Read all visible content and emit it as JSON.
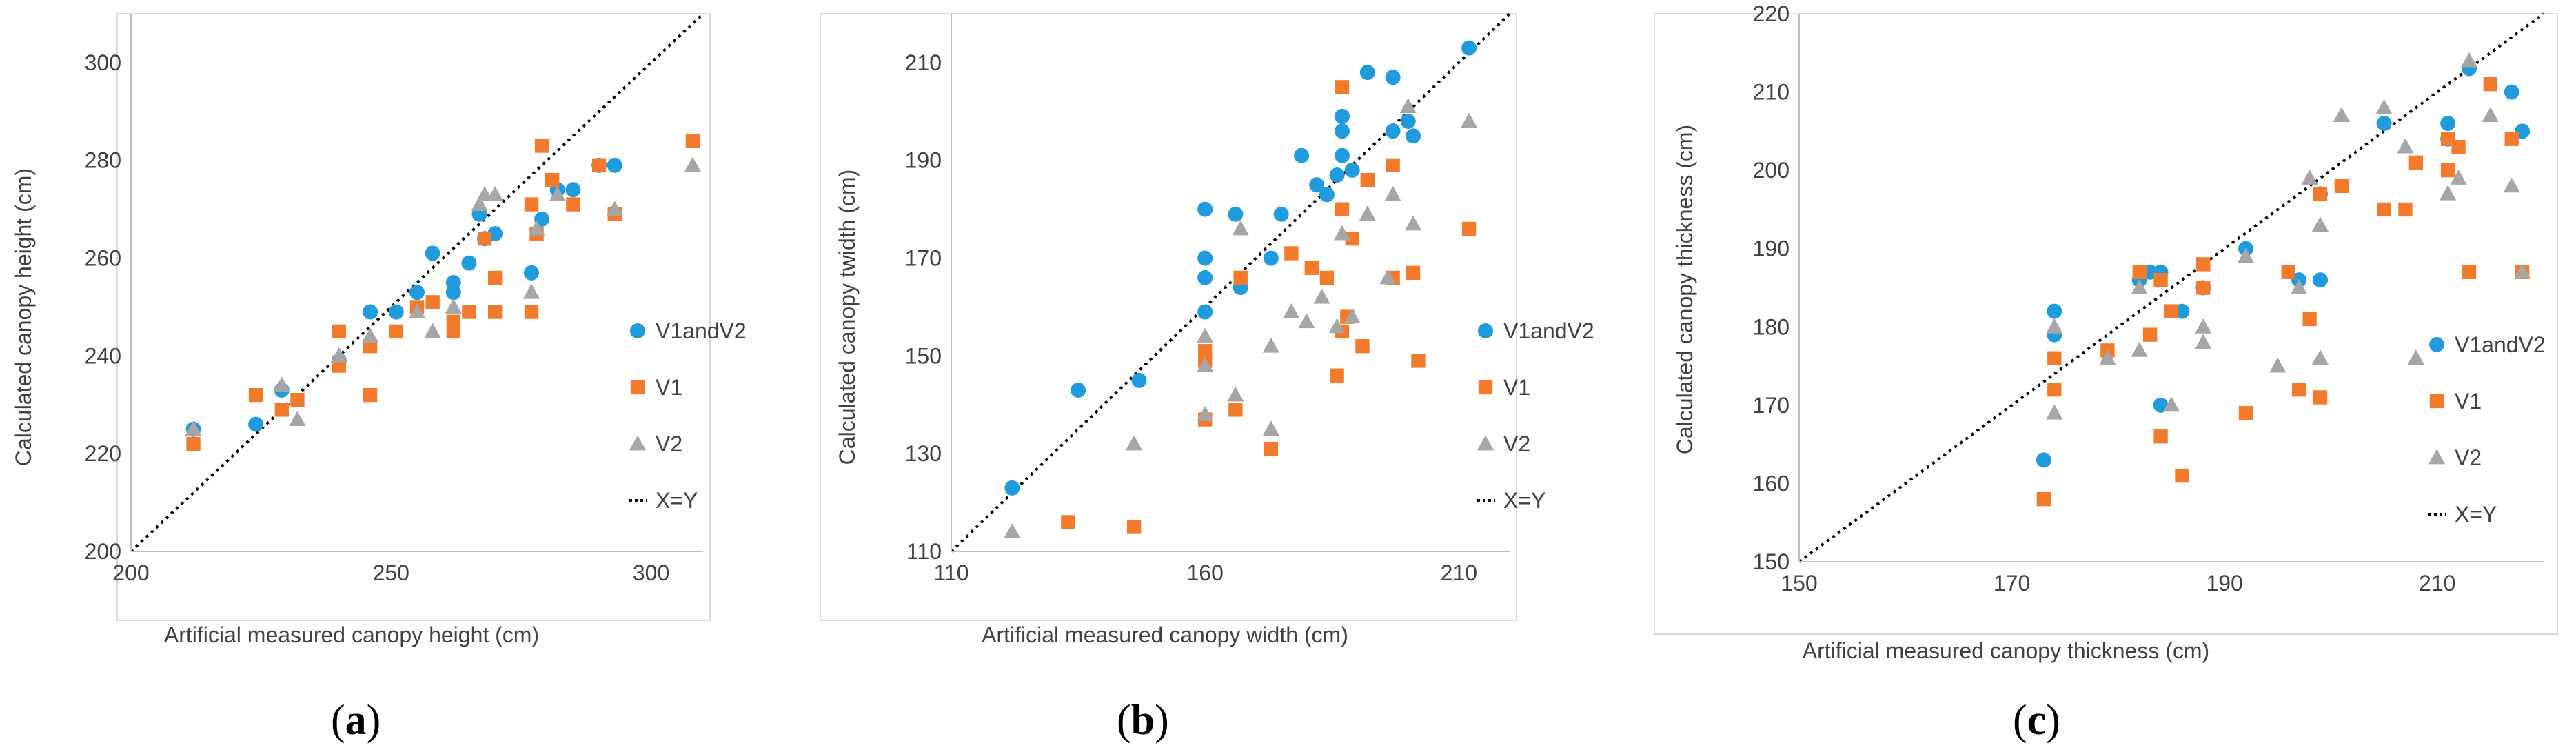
{
  "colors": {
    "V1andV2": "#1F9BDE",
    "V1": "#F27A2A",
    "V2": "#A6A6A6",
    "xy": "#000000",
    "axis": "#BFBFBF",
    "text": "#404040"
  },
  "chart_data": [
    {
      "type": "scatter",
      "panel": "a",
      "xlabel": "Artificial measured canopy height (cm)",
      "ylabel": "Calculated canopy height (cm)",
      "xlim": [
        200,
        310
      ],
      "ylim": [
        200,
        310
      ],
      "xticks": [
        "200",
        "250",
        "300"
      ],
      "xtick_values": [
        200,
        250,
        300
      ],
      "yticks": [
        "200",
        "220",
        "240",
        "260",
        "280",
        "300"
      ],
      "ytick_values": [
        200,
        220,
        240,
        260,
        280,
        300
      ],
      "legend": [
        "V1andV2",
        "V1",
        "V2",
        "X=Y"
      ],
      "series": [
        {
          "name": "V1andV2",
          "points": [
            [
              212,
              225
            ],
            [
              224,
              226
            ],
            [
              229,
              233
            ],
            [
              240,
              239
            ],
            [
              246,
              249
            ],
            [
              251,
              249
            ],
            [
              255,
              253
            ],
            [
              258,
              261
            ],
            [
              262,
              255
            ],
            [
              262,
              253
            ],
            [
              265,
              259
            ],
            [
              267,
              269
            ],
            [
              268,
              264
            ],
            [
              270,
              265
            ],
            [
              277,
              257
            ],
            [
              279,
              268
            ],
            [
              282,
              274
            ],
            [
              285,
              274
            ],
            [
              290,
              279
            ],
            [
              293,
              279
            ]
          ]
        },
        {
          "name": "V1",
          "points": [
            [
              212,
              222
            ],
            [
              224,
              232
            ],
            [
              229,
              229
            ],
            [
              232,
              231
            ],
            [
              240,
              238
            ],
            [
              240,
              245
            ],
            [
              246,
              232
            ],
            [
              246,
              242
            ],
            [
              251,
              245
            ],
            [
              255,
              250
            ],
            [
              258,
              251
            ],
            [
              262,
              245
            ],
            [
              262,
              247
            ],
            [
              265,
              249
            ],
            [
              268,
              264
            ],
            [
              270,
              249
            ],
            [
              270,
              256
            ],
            [
              277,
              249
            ],
            [
              277,
              271
            ],
            [
              278,
              265
            ],
            [
              279,
              283
            ],
            [
              281,
              276
            ],
            [
              285,
              271
            ],
            [
              290,
              279
            ],
            [
              293,
              269
            ],
            [
              308,
              284
            ]
          ]
        },
        {
          "name": "V2",
          "points": [
            [
              212,
              225
            ],
            [
              229,
              234
            ],
            [
              232,
              227
            ],
            [
              240,
              240
            ],
            [
              246,
              244
            ],
            [
              255,
              249
            ],
            [
              258,
              245
            ],
            [
              262,
              250
            ],
            [
              267,
              271
            ],
            [
              268,
              273
            ],
            [
              270,
              273
            ],
            [
              277,
              253
            ],
            [
              278,
              266
            ],
            [
              282,
              273
            ],
            [
              293,
              270
            ],
            [
              308,
              279
            ]
          ]
        }
      ]
    },
    {
      "type": "scatter",
      "panel": "b",
      "xlabel": "Artificial measured canopy width  (cm)",
      "ylabel": "Calculated canopy twidth (cm)",
      "xlim": [
        110,
        220
      ],
      "ylim": [
        110,
        220
      ],
      "xticks": [
        "110",
        "160",
        "210"
      ],
      "xtick_values": [
        110,
        160,
        210
      ],
      "yticks": [
        "110",
        "130",
        "150",
        "170",
        "190",
        "210"
      ],
      "ytick_values": [
        110,
        130,
        150,
        170,
        190,
        210
      ],
      "legend": [
        "V1andV2",
        "V1",
        "V2",
        "X=Y"
      ],
      "series": [
        {
          "name": "V1andV2",
          "points": [
            [
              122,
              123
            ],
            [
              135,
              143
            ],
            [
              147,
              145
            ],
            [
              160,
              159
            ],
            [
              160,
              166
            ],
            [
              160,
              170
            ],
            [
              160,
              180
            ],
            [
              166,
              179
            ],
            [
              167,
              164
            ],
            [
              173,
              170
            ],
            [
              175,
              179
            ],
            [
              179,
              191
            ],
            [
              182,
              185
            ],
            [
              184,
              183
            ],
            [
              186,
              187
            ],
            [
              187,
              191
            ],
            [
              187,
              196
            ],
            [
              187,
              199
            ],
            [
              189,
              188
            ],
            [
              192,
              208
            ],
            [
              197,
              207
            ],
            [
              197,
              196
            ],
            [
              200,
              198
            ],
            [
              201,
              195
            ],
            [
              212,
              213
            ]
          ]
        },
        {
          "name": "V1",
          "points": [
            [
              133,
              116
            ],
            [
              146,
              115
            ],
            [
              160,
              137
            ],
            [
              160,
              149
            ],
            [
              160,
              151
            ],
            [
              166,
              139
            ],
            [
              167,
              166
            ],
            [
              173,
              131
            ],
            [
              177,
              171
            ],
            [
              181,
              168
            ],
            [
              184,
              166
            ],
            [
              186,
              146
            ],
            [
              187,
              155
            ],
            [
              187,
              180
            ],
            [
              187,
              205
            ],
            [
              188,
              158
            ],
            [
              189,
              174
            ],
            [
              191,
              152
            ],
            [
              192,
              186
            ],
            [
              197,
              166
            ],
            [
              197,
              189
            ],
            [
              201,
              167
            ],
            [
              202,
              149
            ],
            [
              212,
              176
            ]
          ]
        },
        {
          "name": "V2",
          "points": [
            [
              122,
              114
            ],
            [
              146,
              132
            ],
            [
              160,
              138
            ],
            [
              160,
              148
            ],
            [
              160,
              154
            ],
            [
              166,
              142
            ],
            [
              167,
              176
            ],
            [
              173,
              135
            ],
            [
              173,
              152
            ],
            [
              177,
              159
            ],
            [
              180,
              157
            ],
            [
              183,
              162
            ],
            [
              186,
              156
            ],
            [
              187,
              175
            ],
            [
              189,
              158
            ],
            [
              192,
              179
            ],
            [
              196,
              166
            ],
            [
              197,
              183
            ],
            [
              200,
              201
            ],
            [
              201,
              177
            ],
            [
              212,
              198
            ]
          ]
        }
      ]
    },
    {
      "type": "scatter",
      "panel": "c",
      "xlabel": "Artificial measured canopy thickness (cm)",
      "ylabel": "Calculated canopy thickness (cm)",
      "xlim": [
        150,
        220
      ],
      "ylim": [
        150,
        220
      ],
      "xticks": [
        "150",
        "170",
        "190",
        "210"
      ],
      "xtick_values": [
        150,
        170,
        190,
        210
      ],
      "yticks": [
        "150",
        "160",
        "170",
        "180",
        "190",
        "200",
        "210",
        "220"
      ],
      "ytick_values": [
        150,
        160,
        170,
        180,
        190,
        200,
        210,
        220
      ],
      "legend": [
        "V1andV2",
        "V1",
        "V2",
        "X=Y"
      ],
      "series": [
        {
          "name": "V1andV2",
          "points": [
            [
              173,
              163
            ],
            [
              174,
              179
            ],
            [
              174,
              182
            ],
            [
              182,
              186
            ],
            [
              183,
              187
            ],
            [
              184,
              187
            ],
            [
              184,
              170
            ],
            [
              186,
              182
            ],
            [
              188,
              185
            ],
            [
              192,
              190
            ],
            [
              197,
              186
            ],
            [
              199,
              197
            ],
            [
              199,
              186
            ],
            [
              205,
              206
            ],
            [
              211,
              206
            ],
            [
              211,
              204
            ],
            [
              213,
              213
            ],
            [
              217,
              210
            ],
            [
              218,
              205
            ]
          ]
        },
        {
          "name": "V1",
          "points": [
            [
              173,
              158
            ],
            [
              174,
              172
            ],
            [
              174,
              176
            ],
            [
              179,
              177
            ],
            [
              182,
              187
            ],
            [
              183,
              179
            ],
            [
              184,
              186
            ],
            [
              184,
              166
            ],
            [
              185,
              182
            ],
            [
              186,
              161
            ],
            [
              188,
              188
            ],
            [
              188,
              185
            ],
            [
              192,
              169
            ],
            [
              196,
              187
            ],
            [
              197,
              172
            ],
            [
              198,
              181
            ],
            [
              199,
              171
            ],
            [
              199,
              197
            ],
            [
              201,
              198
            ],
            [
              205,
              195
            ],
            [
              207,
              195
            ],
            [
              208,
              201
            ],
            [
              211,
              204
            ],
            [
              211,
              200
            ],
            [
              212,
              203
            ],
            [
              213,
              187
            ],
            [
              215,
              211
            ],
            [
              217,
              204
            ],
            [
              218,
              187
            ]
          ]
        },
        {
          "name": "V2",
          "points": [
            [
              174,
              169
            ],
            [
              174,
              180
            ],
            [
              179,
              176
            ],
            [
              182,
              177
            ],
            [
              182,
              185
            ],
            [
              185,
              170
            ],
            [
              188,
              180
            ],
            [
              188,
              178
            ],
            [
              192,
              189
            ],
            [
              195,
              175
            ],
            [
              197,
              185
            ],
            [
              198,
              199
            ],
            [
              199,
              176
            ],
            [
              199,
              193
            ],
            [
              201,
              207
            ],
            [
              205,
              208
            ],
            [
              207,
              203
            ],
            [
              208,
              176
            ],
            [
              211,
              197
            ],
            [
              212,
              199
            ],
            [
              213,
              214
            ],
            [
              215,
              207
            ],
            [
              217,
              198
            ],
            [
              218,
              187
            ]
          ]
        }
      ]
    }
  ],
  "panels": [
    {
      "label": "a",
      "open": "(",
      "close": ")"
    },
    {
      "label": "b",
      "open": "(",
      "close": ")"
    },
    {
      "label": "c",
      "open": "(",
      "close": ")"
    }
  ]
}
